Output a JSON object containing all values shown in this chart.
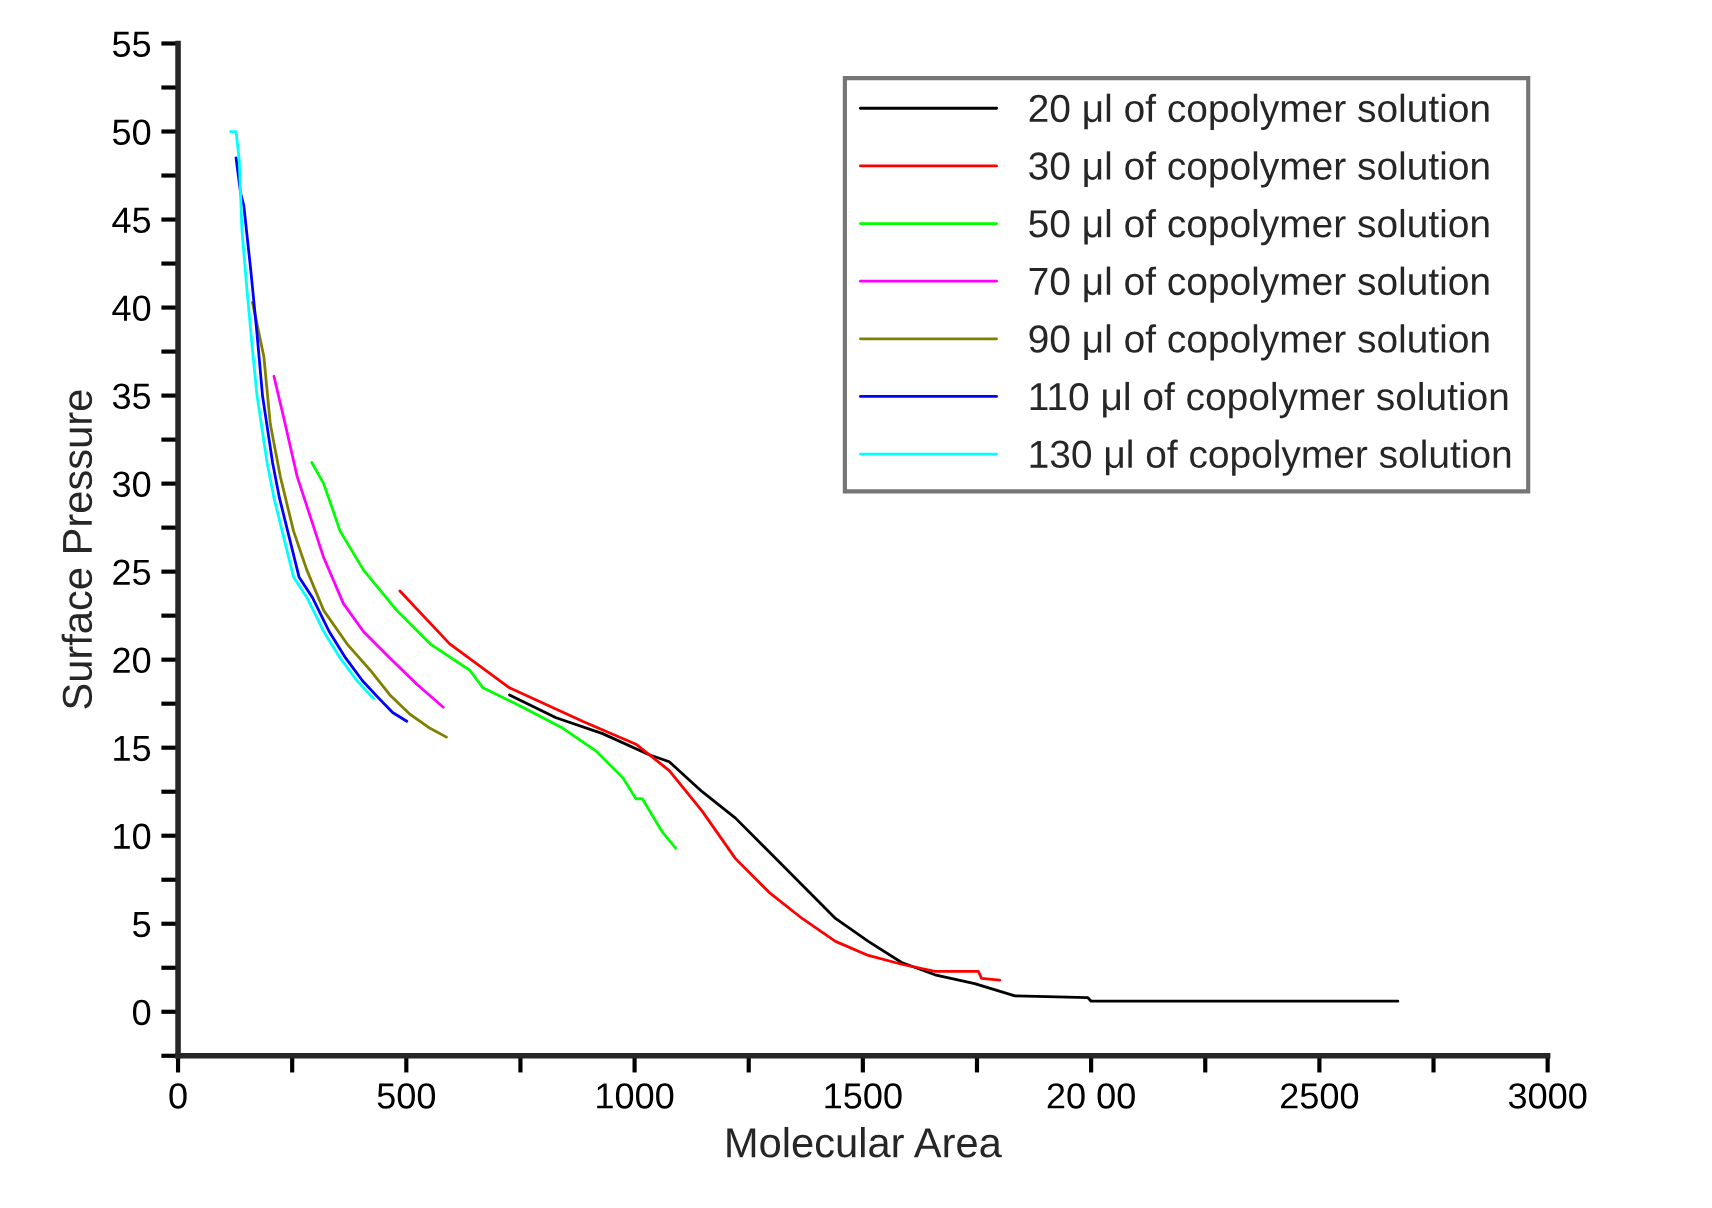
{
  "chart_data": {
    "type": "line",
    "xlabel": "Molecular Area",
    "ylabel": "Surface Pressure",
    "xlim": [
      0,
      3000
    ],
    "ylim": [
      -2.5,
      55
    ],
    "xticks": [
      0,
      {
        "value": 250,
        "label": null
      },
      500,
      {
        "value": 750,
        "label": null
      },
      1000,
      {
        "value": 1250,
        "label": null
      },
      1500,
      {
        "value": 1750,
        "label": null
      },
      {
        "value": 2000,
        "label": "20 00"
      },
      {
        "value": 2250,
        "label": null
      },
      2500,
      {
        "value": 2750,
        "label": null
      },
      3000
    ],
    "yticks": [
      {
        "value": -2.5,
        "label": null
      },
      0,
      {
        "value": 2.5,
        "label": null
      },
      5,
      {
        "value": 7.5,
        "label": null
      },
      10,
      {
        "value": 12.5,
        "label": null
      },
      15,
      {
        "value": 17.5,
        "label": null
      },
      20,
      {
        "value": 22.5,
        "label": null
      },
      25,
      {
        "value": 27.5,
        "label": null
      },
      30,
      {
        "value": 32.5,
        "label": null
      },
      35,
      {
        "value": 37.5,
        "label": null
      },
      40,
      {
        "value": 42.5,
        "label": null
      },
      45,
      {
        "value": 47.5,
        "label": null
      },
      50,
      {
        "value": 52.5,
        "label": null
      },
      55
    ],
    "grid": false,
    "legend": "top right",
    "marker": "none",
    "line_style": "solid",
    "series": [
      {
        "name": "20 μl of copolymer solution",
        "color": "#000000",
        "x": [
          726,
          828,
          930,
          1032,
          1076,
          1148,
          1221,
          1294,
          1367,
          1440,
          1512,
          1585,
          1658,
          1745,
          1833,
          1993,
          2000,
          2672
        ],
        "values": [
          18.0,
          16.7,
          15.8,
          14.6,
          14.2,
          12.5,
          11.0,
          9.1,
          7.2,
          5.3,
          4.0,
          2.8,
          2.1,
          1.6,
          0.9,
          0.8,
          0.6,
          0.6
        ]
      },
      {
        "name": "30 μl of copolymer solution",
        "color": "#ff0000",
        "x": [
          486,
          595,
          726,
          886,
          1003,
          1076,
          1148,
          1221,
          1294,
          1367,
          1440,
          1512,
          1585,
          1658,
          1753,
          1760,
          1800
        ],
        "values": [
          23.9,
          20.9,
          18.4,
          16.5,
          15.2,
          13.7,
          11.4,
          8.7,
          6.8,
          5.3,
          4.0,
          3.2,
          2.7,
          2.3,
          2.3,
          1.9,
          1.8
        ]
      },
      {
        "name": "50 μl of copolymer solution",
        "color": "#00ff00",
        "x": [
          293,
          319,
          355,
          406,
          479,
          552,
          639,
          668,
          755,
          843,
          916,
          974,
          1003,
          1017,
          1061,
          1090
        ],
        "values": [
          31.2,
          30.0,
          27.3,
          25.1,
          22.8,
          20.9,
          19.4,
          18.4,
          17.3,
          16.1,
          14.8,
          13.3,
          12.1,
          12.1,
          10.2,
          9.3
        ]
      },
      {
        "name": "70 μl of copolymer solution",
        "color": "#ff00ff",
        "x": [
          210,
          231,
          261,
          290,
          319,
          362,
          406,
          464,
          523,
          581
        ],
        "values": [
          36.1,
          33.8,
          30.4,
          28.1,
          25.8,
          23.2,
          21.6,
          20.1,
          18.6,
          17.3
        ]
      },
      {
        "name": "90 μl of copolymer solution",
        "color": "#808000",
        "x": [
          163,
          188,
          202,
          224,
          253,
          282,
          319,
          370,
          421,
          464,
          508,
          552,
          588
        ],
        "values": [
          40.3,
          37.2,
          33.4,
          30.4,
          27.3,
          25.1,
          22.8,
          20.9,
          19.4,
          18.0,
          16.9,
          16.1,
          15.6
        ]
      },
      {
        "name": "110 μl of copolymer solution",
        "color": "#0000ff",
        "x": [
          127,
          137,
          144,
          159,
          173,
          185,
          207,
          222,
          243,
          265,
          295,
          331,
          367,
          404,
          440,
          470,
          501
        ],
        "values": [
          48.5,
          46.5,
          45.8,
          42.2,
          38.5,
          35.0,
          31.2,
          29.2,
          27.0,
          24.7,
          23.5,
          21.6,
          20.1,
          18.8,
          17.8,
          17.0,
          16.5
        ]
      },
      {
        "name": "130 μl of copolymer solution",
        "color": "#00ffff",
        "x": [
          115,
          127,
          134,
          140,
          151,
          163,
          173,
          195,
          210,
          231,
          253,
          283,
          319,
          355,
          392,
          428
        ],
        "values": [
          50.0,
          50.0,
          48.4,
          44.4,
          41.0,
          37.6,
          35.0,
          31.2,
          29.2,
          27.0,
          24.7,
          23.5,
          21.6,
          20.1,
          18.8,
          17.8
        ]
      }
    ]
  }
}
